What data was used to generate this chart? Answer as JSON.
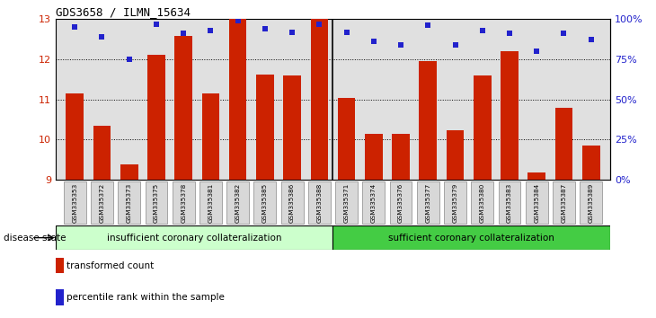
{
  "title": "GDS3658 / ILMN_15634",
  "samples": [
    "GSM335353",
    "GSM335372",
    "GSM335373",
    "GSM335375",
    "GSM335378",
    "GSM335381",
    "GSM335382",
    "GSM335385",
    "GSM335386",
    "GSM335388",
    "GSM335371",
    "GSM335374",
    "GSM335376",
    "GSM335377",
    "GSM335379",
    "GSM335380",
    "GSM335383",
    "GSM335384",
    "GSM335387",
    "GSM335389"
  ],
  "bar_values": [
    11.15,
    10.35,
    9.38,
    12.12,
    12.58,
    11.14,
    13.0,
    11.62,
    11.6,
    13.0,
    11.04,
    10.15,
    10.15,
    11.95,
    10.22,
    11.59,
    12.2,
    9.18,
    10.8,
    9.85
  ],
  "percentile_values": [
    95,
    89,
    75,
    97,
    91,
    93,
    99,
    94,
    92,
    97,
    92,
    86,
    84,
    96,
    84,
    93,
    91,
    80,
    91,
    87
  ],
  "group1_label": "insufficient coronary collateralization",
  "group2_label": "sufficient coronary collateralization",
  "group1_count": 10,
  "group2_count": 10,
  "ylim": [
    9,
    13
  ],
  "yticks": [
    9,
    10,
    11,
    12,
    13
  ],
  "right_yticks": [
    0,
    25,
    50,
    75,
    100
  ],
  "right_ytick_labels": [
    "0%",
    "25%",
    "50%",
    "75%",
    "100%"
  ],
  "bar_color": "#cc2200",
  "dot_color": "#2222cc",
  "group1_color": "#ccffcc",
  "group2_color": "#44cc44",
  "legend_bar_label": "transformed count",
  "legend_dot_label": "percentile rank within the sample",
  "disease_state_label": "disease state",
  "plot_bg_color": "#e0e0e0",
  "tick_label_bg": "#d0d0d0"
}
